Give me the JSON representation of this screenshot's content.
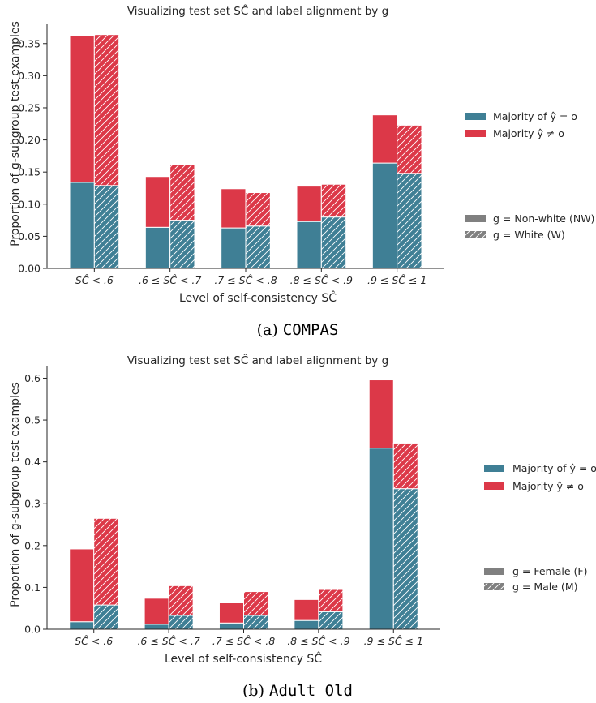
{
  "colors": {
    "majority_match": "#3f7f95",
    "majority_mismatch": "#dc3848",
    "legend_neutral": "#808080"
  },
  "legend": {
    "majority_match": "Majority of ŷ = o",
    "majority_mismatch": "Majority ŷ ≠ o"
  },
  "chart_data": [
    {
      "type": "bar",
      "stacked": true,
      "title": "Visualizing test set SĈ and label alignment by g",
      "xlabel": "Level of self-consistency SĈ",
      "ylabel": "Proportion of g-subgroup test examples",
      "caption_prefix": "(a) ",
      "caption_name": "COMPAS",
      "categories": [
        "SĈ < .6",
        ".6 ≤ SĈ < .7",
        ".7 ≤ SĈ < .8",
        ".8 ≤ SĈ < .9",
        ".9 ≤ SĈ ≤ 1"
      ],
      "ylim": [
        0,
        0.38
      ],
      "yticks": [
        "0.00",
        "0.05",
        "0.10",
        "0.15",
        "0.20",
        "0.25",
        "0.30",
        "0.35"
      ],
      "ytick_values": [
        0,
        0.05,
        0.1,
        0.15,
        0.2,
        0.25,
        0.3,
        0.35
      ],
      "groups": [
        {
          "name": "g = Non-white (NW)",
          "hatch": false,
          "majority_match": [
            0.134,
            0.064,
            0.063,
            0.073,
            0.164
          ],
          "majority_mismatch": [
            0.228,
            0.079,
            0.061,
            0.055,
            0.075
          ]
        },
        {
          "name": "g = White (W)",
          "hatch": true,
          "majority_match": [
            0.129,
            0.075,
            0.066,
            0.08,
            0.148
          ],
          "majority_mismatch": [
            0.235,
            0.086,
            0.052,
            0.051,
            0.075
          ]
        }
      ]
    },
    {
      "type": "bar",
      "stacked": true,
      "title": "Visualizing test set SĈ and label alignment by g",
      "xlabel": "Level of self-consistency SĈ",
      "ylabel": "Proportion of g-subgroup test examples",
      "caption_prefix": "(b) ",
      "caption_name": "Adult Old",
      "categories": [
        "SĈ < .6",
        ".6 ≤ SĈ < .7",
        ".7 ≤ SĈ < .8",
        ".8 ≤ SĈ < .9",
        ".9 ≤ SĈ ≤ 1"
      ],
      "ylim": [
        0,
        0.63
      ],
      "yticks": [
        "0.0",
        "0.1",
        "0.2",
        "0.3",
        "0.4",
        "0.5",
        "0.6"
      ],
      "ytick_values": [
        0,
        0.1,
        0.2,
        0.3,
        0.4,
        0.5,
        0.6
      ],
      "groups": [
        {
          "name": "g = Female (F)",
          "hatch": false,
          "majority_match": [
            0.018,
            0.012,
            0.015,
            0.021,
            0.433
          ],
          "majority_mismatch": [
            0.174,
            0.062,
            0.048,
            0.05,
            0.163
          ]
        },
        {
          "name": "g = Male (M)",
          "hatch": true,
          "majority_match": [
            0.058,
            0.033,
            0.033,
            0.042,
            0.336
          ],
          "majority_mismatch": [
            0.207,
            0.071,
            0.057,
            0.053,
            0.109
          ]
        }
      ]
    }
  ]
}
